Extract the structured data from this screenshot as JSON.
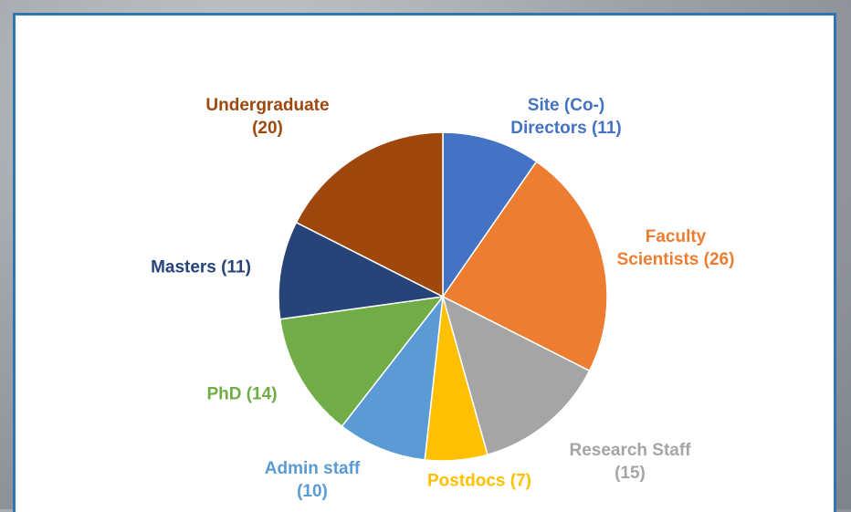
{
  "chart_data": {
    "type": "pie",
    "categories": [
      "Site (Co-) Directors",
      "Faculty Scientists",
      "Research Staff",
      "Postdocs",
      "Admin staff",
      "PhD",
      "Masters",
      "Undergraduate"
    ],
    "values": [
      11,
      26,
      15,
      7,
      10,
      14,
      11,
      20
    ],
    "value_labels": [
      "(11)",
      "(26)",
      "(15)",
      "(7)",
      "(10)",
      "(14)",
      "(11)",
      "(20)"
    ],
    "colors": [
      "#4472c4",
      "#ed7d31",
      "#a5a5a5",
      "#ffc000",
      "#5b9bd5",
      "#70ad47",
      "#264478",
      "#9e480e"
    ]
  }
}
